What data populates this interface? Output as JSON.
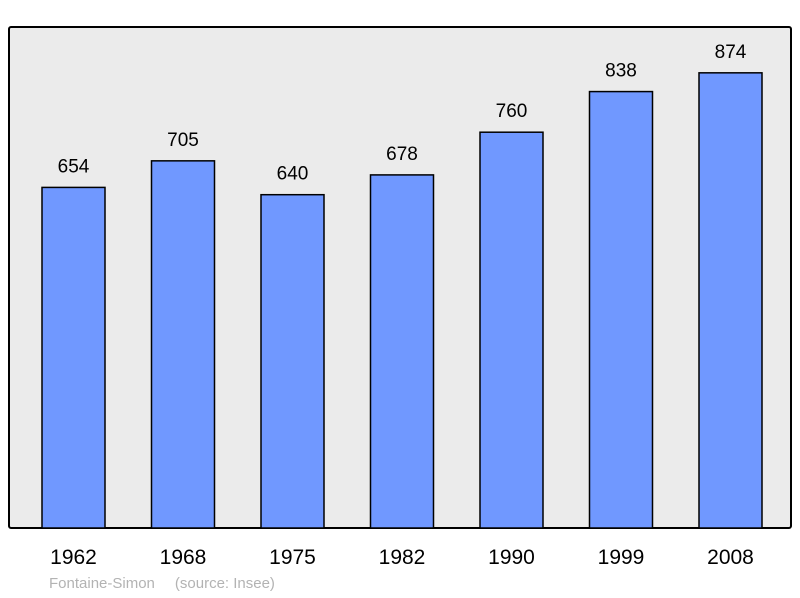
{
  "chart_data": {
    "type": "bar",
    "title": "",
    "xlabel": "",
    "ylabel": "",
    "categories": [
      "1962",
      "1968",
      "1975",
      "1982",
      "1990",
      "1999",
      "2008"
    ],
    "values": [
      654,
      705,
      640,
      678,
      760,
      838,
      874
    ],
    "ylim": [
      0,
      962
    ],
    "grid": false,
    "data_labels": true,
    "colors": {
      "bar": "#7098ff",
      "plot_background": "#ebebeb",
      "frame": "#000000",
      "footer_text": "#b3b3b3"
    }
  },
  "footer": {
    "author": "Fontaine-Simon",
    "source": "(source: Insee)"
  }
}
